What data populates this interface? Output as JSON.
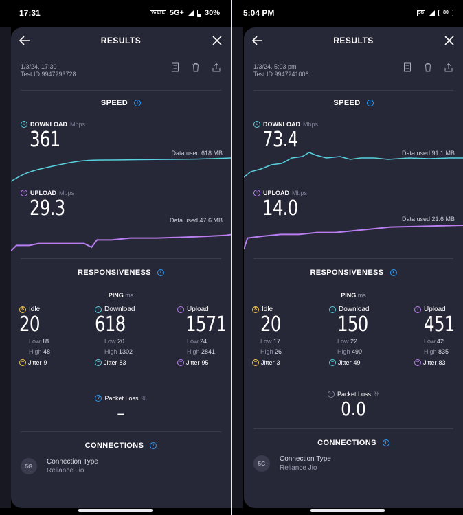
{
  "left": {
    "status": {
      "time": "17:31",
      "network": "5G+",
      "battery": "30%"
    },
    "header": {
      "title": "RESULTS"
    },
    "meta": {
      "date": "1/3/24, 17:30",
      "test_id": "Test ID 9947293728"
    },
    "speed": {
      "title": "SPEED",
      "download": {
        "label": "DOWNLOAD",
        "unit": "Mbps",
        "value": "361",
        "data_used": "Data used 618 MB"
      },
      "upload": {
        "label": "UPLOAD",
        "unit": "Mbps",
        "value": "29.3",
        "data_used": "Data used 47.6 MB"
      }
    },
    "responsiveness": {
      "title": "RESPONSIVENESS",
      "ping_label": "PING",
      "ping_unit": "ms",
      "idle": {
        "label": "Idle",
        "value": "20",
        "low": "18",
        "high": "48",
        "jitter": "9"
      },
      "download": {
        "label": "Download",
        "value": "618",
        "low": "20",
        "high": "1302",
        "jitter": "83"
      },
      "upload": {
        "label": "Upload",
        "value": "1571",
        "low": "24",
        "high": "2841",
        "jitter": "95"
      },
      "packet_loss": {
        "label": "Packet Loss",
        "unit": "%",
        "value": "–"
      }
    },
    "connections": {
      "title": "CONNECTIONS",
      "type_label": "Connection Type",
      "type_value": "Reliance Jio",
      "badge": "5G"
    }
  },
  "right": {
    "status": {
      "time": "5:04 PM",
      "battery": "80"
    },
    "header": {
      "title": "RESULTS"
    },
    "meta": {
      "date": "1/3/24, 5:03 pm",
      "test_id": "Test ID 9947241006"
    },
    "speed": {
      "title": "SPEED",
      "download": {
        "label": "DOWNLOAD",
        "unit": "Mbps",
        "value": "73.4",
        "data_used": "Data used 91.1 MB"
      },
      "upload": {
        "label": "UPLOAD",
        "unit": "Mbps",
        "value": "14.0",
        "data_used": "Data used 21.6 MB"
      }
    },
    "responsiveness": {
      "title": "RESPONSIVENESS",
      "ping_label": "PING",
      "ping_unit": "ms",
      "idle": {
        "label": "Idle",
        "value": "20",
        "low": "17",
        "high": "26",
        "jitter": "3"
      },
      "download": {
        "label": "Download",
        "value": "150",
        "low": "22",
        "high": "490",
        "jitter": "49"
      },
      "upload": {
        "label": "Upload",
        "value": "451",
        "low": "42",
        "high": "835",
        "jitter": "83"
      },
      "packet_loss": {
        "label": "Packet Loss",
        "unit": "%",
        "value": "0.0"
      }
    },
    "connections": {
      "title": "CONNECTIONS",
      "type_label": "Connection Type",
      "type_value": "Reliance Jio",
      "badge": "5G"
    }
  },
  "labels": {
    "low": "Low",
    "high": "High",
    "jitter": "Jitter"
  },
  "colors": {
    "card": "#262737",
    "download": "#59d1de",
    "upload": "#b97ef0",
    "idle": "#f3c64a",
    "info": "#2b9cf5"
  },
  "icons": [
    "back-arrow-icon",
    "close-icon",
    "document-icon",
    "trash-icon",
    "share-icon",
    "info-icon",
    "download-arrow-icon",
    "upload-arrow-icon",
    "idle-icon",
    "jitter-icon"
  ]
}
